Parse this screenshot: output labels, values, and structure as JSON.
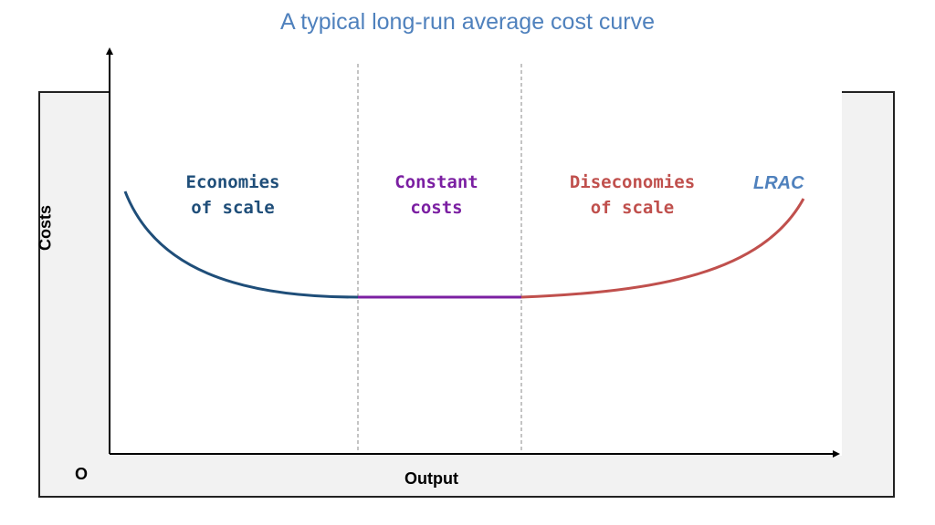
{
  "title": "A typical long-run average cost curve",
  "colors": {
    "title": "#4f81bd",
    "economies": "#1f4e79",
    "constant": "#7b1fa2",
    "diseconomies": "#c0504d",
    "lrac": "#4f81bd"
  },
  "axes": {
    "y_label": "Costs",
    "x_label": "Output",
    "origin_label": "O"
  },
  "regions": [
    {
      "key": "economies",
      "line1": "Economies",
      "line2": "of scale"
    },
    {
      "key": "constant",
      "line1": "Constant",
      "line2": "costs"
    },
    {
      "key": "diseconomies",
      "line1": "Diseconomies",
      "line2": "of scale"
    }
  ],
  "curve_label": "LRAC"
}
